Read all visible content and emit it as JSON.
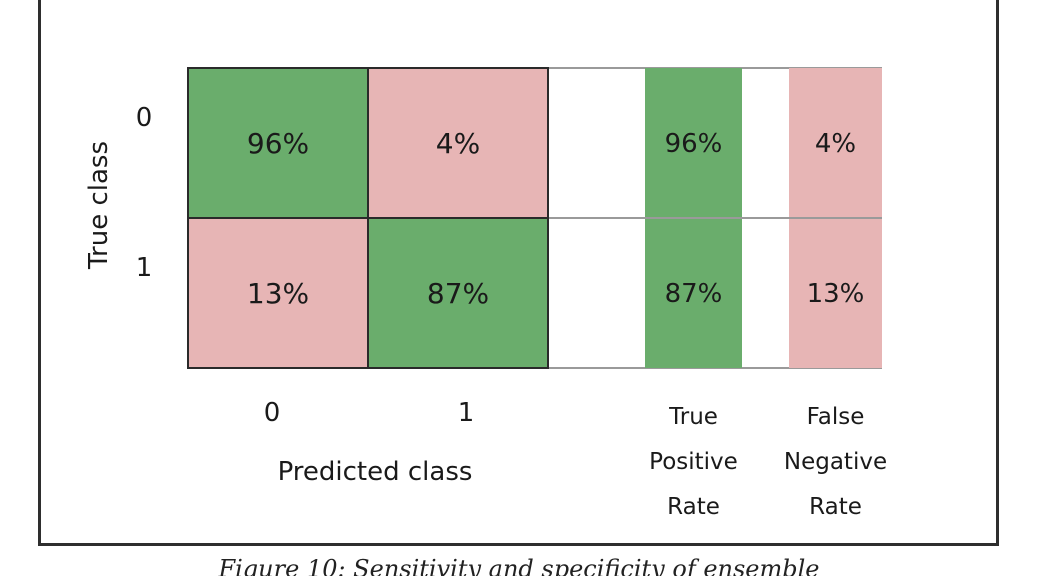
{
  "chart_data": {
    "type": "heatmap",
    "title": "",
    "ylabel": "True class",
    "xlabel": "Predicted class",
    "row_labels": [
      "0",
      "1"
    ],
    "col_labels": [
      "0",
      "1"
    ],
    "values": [
      [
        96,
        4
      ],
      [
        13,
        87
      ]
    ],
    "value_format": "percent",
    "summary_columns": [
      {
        "label_lines": [
          "True",
          "Positive",
          "Rate"
        ],
        "values": [
          96,
          87
        ],
        "color": "#6aad6c"
      },
      {
        "label_lines": [
          "False",
          "Negative",
          "Rate"
        ],
        "values": [
          4,
          13
        ],
        "color": "#e7b5b5"
      }
    ],
    "colors": {
      "correct": "#6aad6c",
      "incorrect": "#e7b5b5",
      "cell_border": "#2a2a2a"
    }
  },
  "caption": "Figure 10: Sensitivity and specificity of ensemble"
}
